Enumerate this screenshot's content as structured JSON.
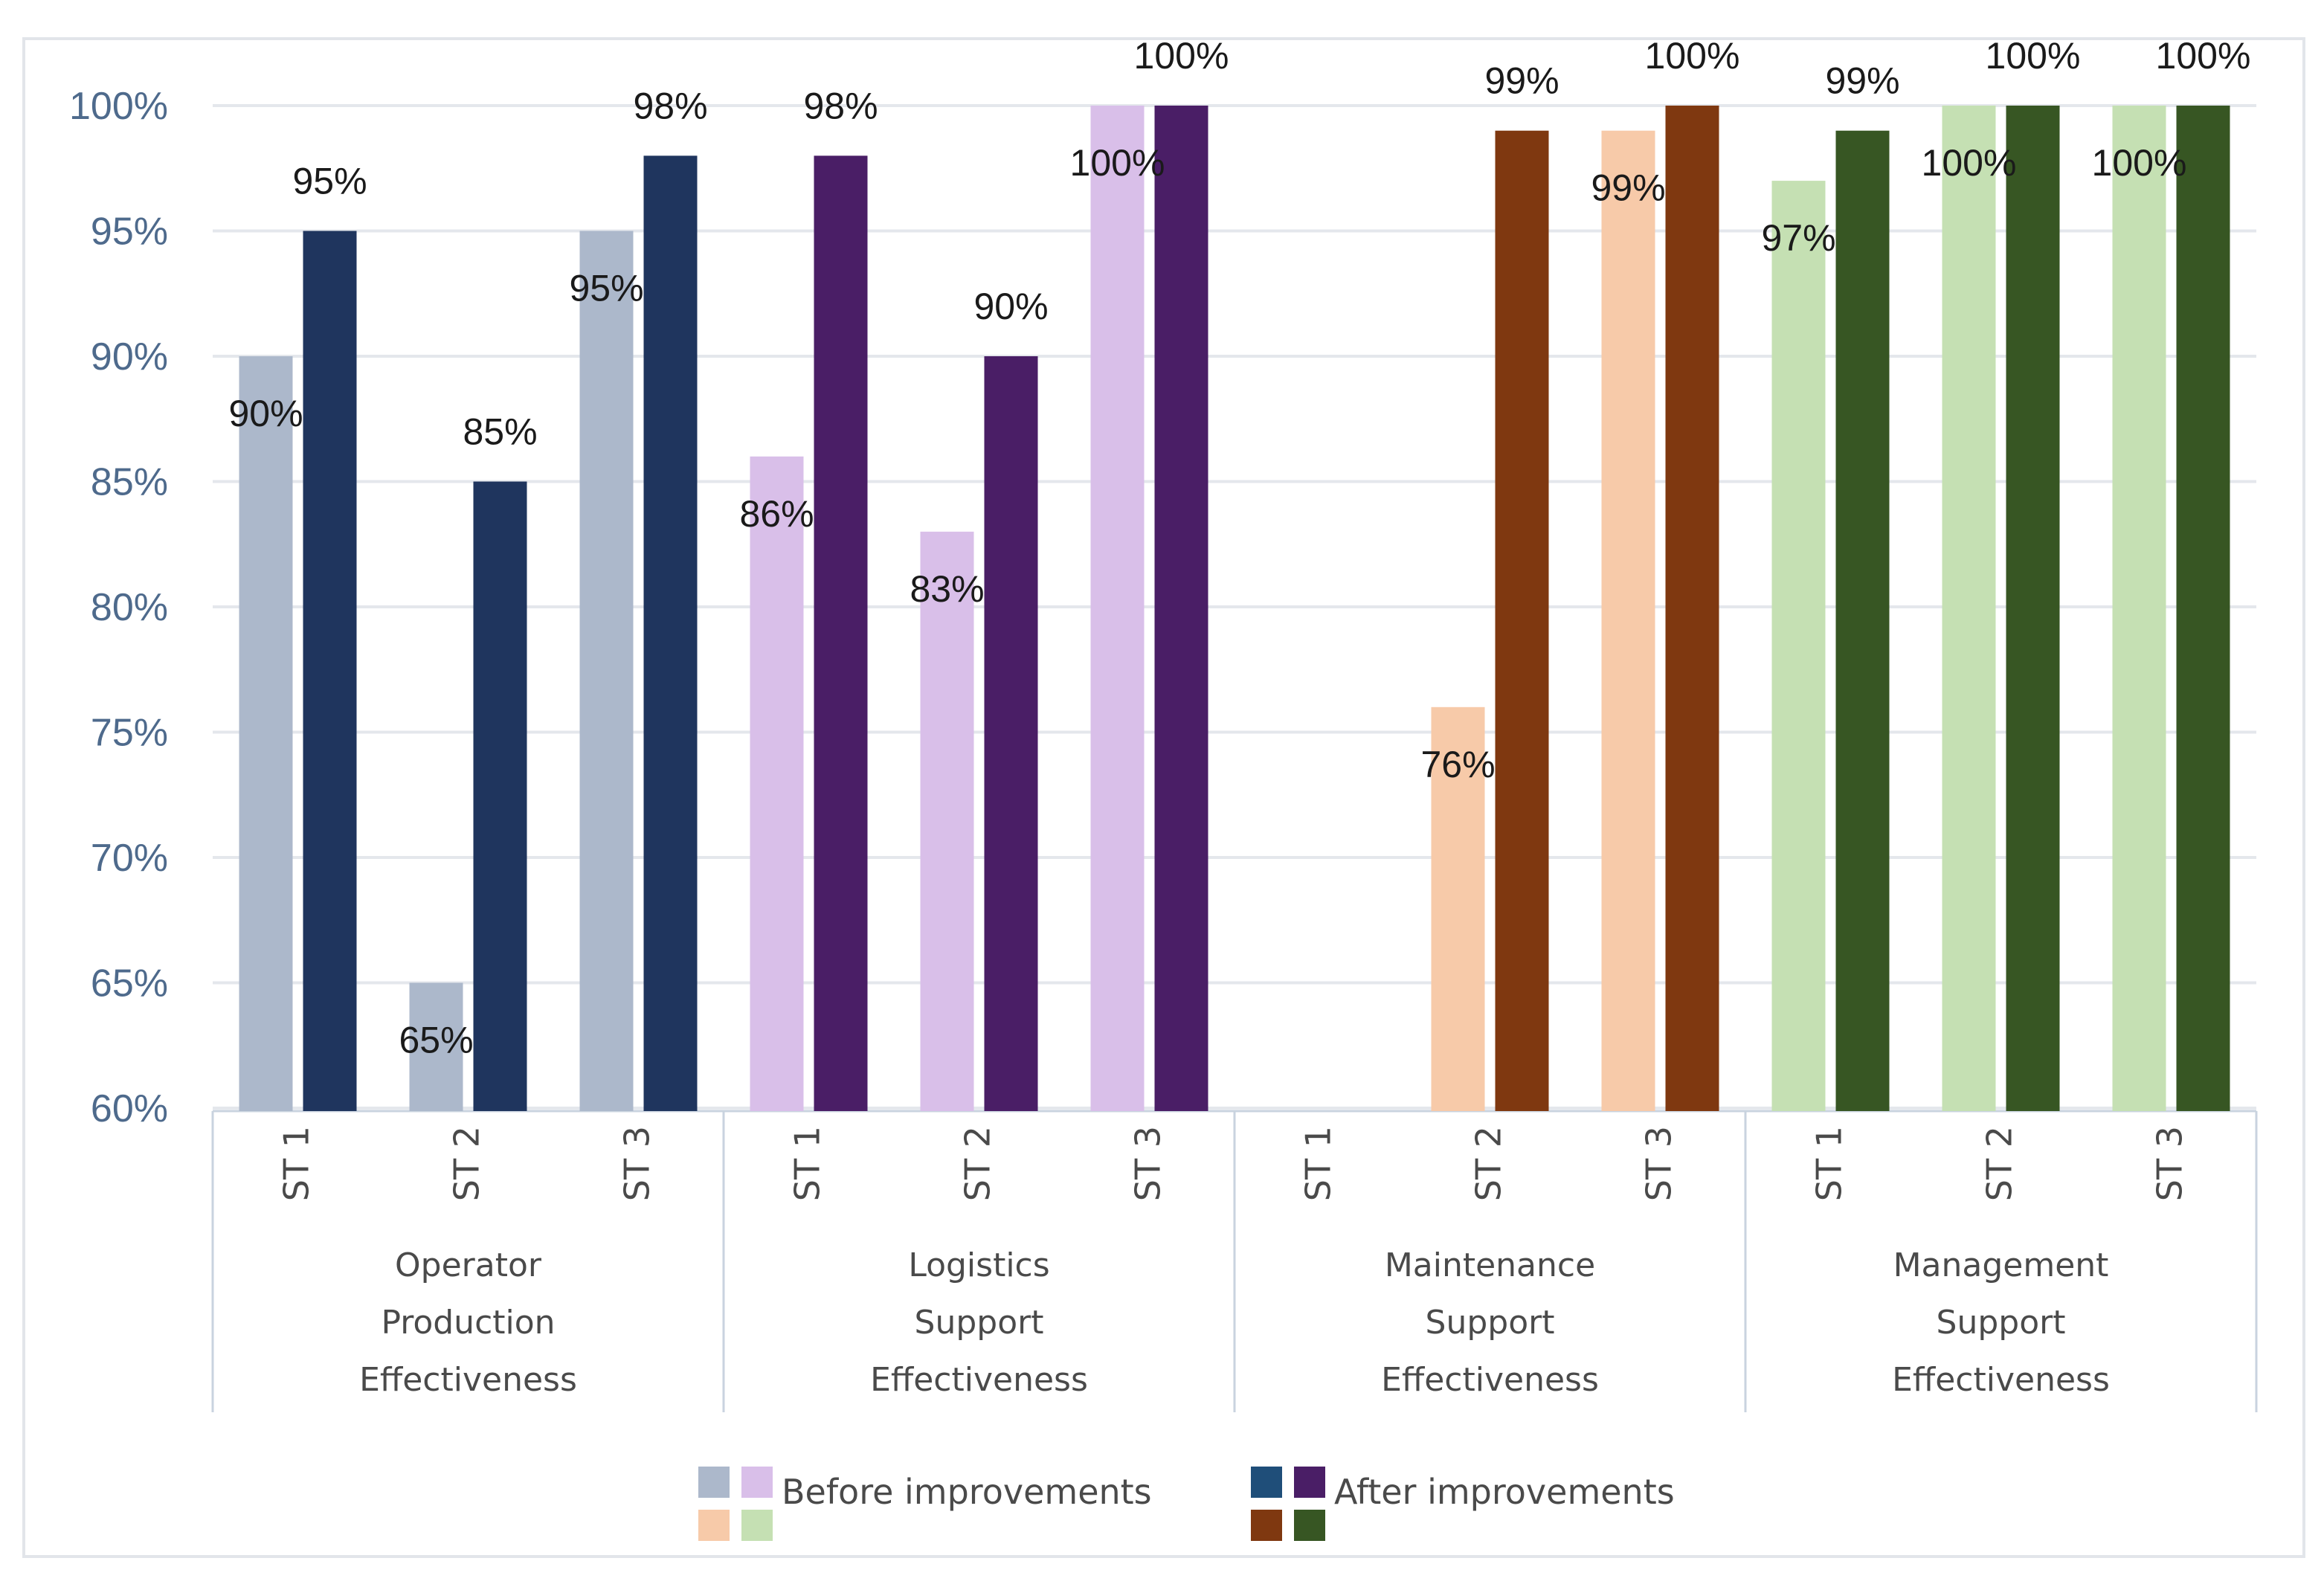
{
  "chart_data": {
    "type": "bar",
    "y_axis": {
      "min": 60,
      "max": 100,
      "step": 5,
      "tick_labels": [
        "60%",
        "65%",
        "70%",
        "75%",
        "80%",
        "85%",
        "90%",
        "95%",
        "100%"
      ]
    },
    "groups": [
      {
        "label_lines": [
          "Operator",
          "Production",
          "Effectiveness"
        ],
        "before_color": "#acb8cb",
        "after_color": "#1f355e",
        "stages": [
          {
            "name": "ST 1",
            "before": 90,
            "after": 95,
            "before_label": "90%",
            "after_label": "95%"
          },
          {
            "name": "ST 2",
            "before": 65,
            "after": 85,
            "before_label": "65%",
            "after_label": "85%"
          },
          {
            "name": "ST 3",
            "before": 95,
            "after": 98,
            "before_label": "95%",
            "after_label": "98%"
          }
        ]
      },
      {
        "label_lines": [
          "Logistics",
          "Support",
          "Effectiveness"
        ],
        "before_color": "#d9bfe9",
        "after_color": "#4a1e66",
        "stages": [
          {
            "name": "ST 1",
            "before": 86,
            "after": 98,
            "before_label": "86%",
            "after_label": "98%"
          },
          {
            "name": "ST 2",
            "before": 83,
            "after": 90,
            "before_label": "83%",
            "after_label": "90%"
          },
          {
            "name": "ST 3",
            "before": 100,
            "after": 100,
            "before_label": "100%",
            "after_label": "100%"
          }
        ]
      },
      {
        "label_lines": [
          "Maintenance",
          "Support",
          "Effectiveness"
        ],
        "before_color": "#f7caa9",
        "after_color": "#7f3810",
        "stages": [
          {
            "name": "ST 1",
            "before": null,
            "after": null,
            "before_label": null,
            "after_label": null
          },
          {
            "name": "ST 2",
            "before": 76,
            "after": 99,
            "before_label": "76%",
            "after_label": "99%"
          },
          {
            "name": "ST 3",
            "before": 99,
            "after": 100,
            "before_label": "99%",
            "after_label": "100%"
          }
        ]
      },
      {
        "label_lines": [
          "Management",
          "Support",
          "Effectiveness"
        ],
        "before_color": "#c5e0b3",
        "after_color": "#375623",
        "stages": [
          {
            "name": "ST 1",
            "before": 97,
            "after": 99,
            "before_label": "97%",
            "after_label": "99%"
          },
          {
            "name": "ST 2",
            "before": 100,
            "after": 100,
            "before_label": "100%",
            "after_label": "100%"
          },
          {
            "name": "ST 3",
            "before": 100,
            "after": 100,
            "before_label": "100%",
            "after_label": "100%"
          }
        ]
      }
    ],
    "legend": {
      "placement": "bottom",
      "items": [
        {
          "label": "Before improvements",
          "colors": [
            "#acb8cb",
            "#d9bfe9",
            "#f7caa9",
            "#c5e0b3"
          ]
        },
        {
          "label": "After improvements",
          "colors": [
            "#1f4e79",
            "#4a1e66",
            "#7f3810",
            "#375623"
          ]
        }
      ]
    },
    "grid": true,
    "title": "",
    "xlabel": "",
    "ylabel": ""
  }
}
